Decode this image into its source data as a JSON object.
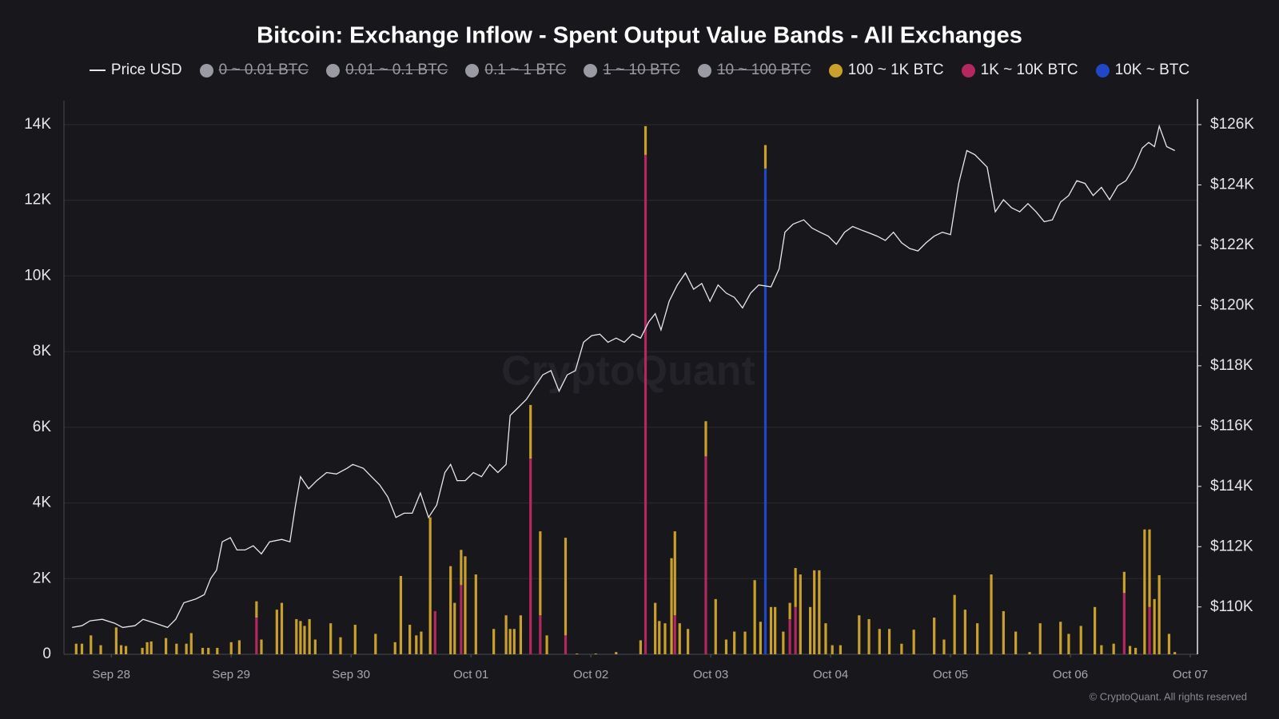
{
  "chart_data": {
    "type": "bar",
    "stacked": true,
    "title": "Bitcoin: Exchange Inflow - Spent Output Value Bands - All Exchanges",
    "x": [
      -0.293,
      -0.245,
      -0.17,
      -0.088,
      0.041,
      0.082,
      0.122,
      0.259,
      0.299,
      0.333,
      0.456,
      0.544,
      0.626,
      0.667,
      0.762,
      0.81,
      0.884,
      1,
      1.068,
      1.211,
      1.252,
      1.381,
      1.422,
      1.544,
      1.578,
      1.612,
      1.653,
      1.701,
      1.83,
      1.912,
      2.034,
      2.204,
      2.367,
      2.415,
      2.49,
      2.544,
      2.585,
      2.66,
      2.701,
      2.83,
      2.864,
      2.918,
      2.952,
      3.041,
      3.19,
      3.293,
      3.327,
      3.361,
      3.415,
      3.497,
      3.578,
      3.633,
      3.789,
      3.884,
      4.041,
      4.211,
      4.415,
      4.456,
      4.537,
      4.571,
      4.619,
      4.673,
      4.701,
      4.741,
      4.81,
      4.959,
      5.041,
      5.129,
      5.197,
      5.286,
      5.367,
      5.415,
      5.456,
      5.503,
      5.537,
      5.605,
      5.66,
      5.707,
      5.748,
      5.83,
      5.864,
      5.905,
      5.959,
      6.014,
      6.082,
      6.238,
      6.32,
      6.408,
      6.49,
      6.592,
      6.694,
      6.864,
      6.946,
      7.034,
      7.122,
      7.224,
      7.34,
      7.442,
      7.544,
      7.66,
      7.748,
      7.918,
      7.986,
      8.088,
      8.204,
      8.259,
      8.361,
      8.449,
      8.497,
      8.544,
      8.619,
      8.66,
      8.701,
      8.741,
      8.823,
      8.871
    ],
    "xlim": [
      -0.395,
      9.06
    ],
    "xticks": [
      {
        "value": 0,
        "label": "Sep 28"
      },
      {
        "value": 1,
        "label": "Sep 29"
      },
      {
        "value": 2,
        "label": "Sep 30"
      },
      {
        "value": 3,
        "label": "Oct 01"
      },
      {
        "value": 4,
        "label": "Oct 02"
      },
      {
        "value": 5,
        "label": "Oct 03"
      },
      {
        "value": 6,
        "label": "Oct 04"
      },
      {
        "value": 7,
        "label": "Oct 05"
      },
      {
        "value": 8,
        "label": "Oct 06"
      },
      {
        "value": 9,
        "label": "Oct 07"
      }
    ],
    "ylim": [
      0,
      14000
    ],
    "yticks": [
      0,
      {
        "value": 2000,
        "label": "2K"
      },
      {
        "value": 4000,
        "label": "4K"
      },
      {
        "value": 6000,
        "label": "6K"
      },
      {
        "value": 8000,
        "label": "8K"
      },
      {
        "value": 10000,
        "label": "10K"
      },
      {
        "value": 12000,
        "label": "12K"
      },
      {
        "value": 14000,
        "label": "14K"
      }
    ],
    "y2lim": [
      108430,
      126000
    ],
    "y2ticks": [
      {
        "value": 110000,
        "label": "$110K"
      },
      {
        "value": 112000,
        "label": "$112K"
      },
      {
        "value": 114000,
        "label": "$114K"
      },
      {
        "value": 116000,
        "label": "$116K"
      },
      {
        "value": 118000,
        "label": "$118K"
      },
      {
        "value": 120000,
        "label": "$120K"
      },
      {
        "value": 122000,
        "label": "$122K"
      },
      {
        "value": 124000,
        "label": "$124K"
      },
      {
        "value": 126000,
        "label": "$126K"
      }
    ],
    "grid": true,
    "series": [
      {
        "name": "Price USD",
        "type": "line",
        "axis": "y2",
        "color": "#e8e8ec",
        "x": [
          -0.327,
          -0.245,
          -0.177,
          -0.075,
          0.027,
          0.095,
          0.197,
          0.265,
          0.367,
          0.469,
          0.537,
          0.605,
          0.707,
          0.776,
          0.83,
          0.878,
          0.925,
          0.993,
          1.048,
          1.116,
          1.184,
          1.252,
          1.32,
          1.422,
          1.49,
          1.537,
          1.578,
          1.646,
          1.714,
          1.796,
          1.878,
          1.966,
          2.014,
          2.102,
          2.17,
          2.238,
          2.306,
          2.374,
          2.442,
          2.51,
          2.578,
          2.646,
          2.714,
          2.782,
          2.83,
          2.884,
          2.952,
          3.02,
          3.088,
          3.156,
          3.224,
          3.293,
          3.327,
          3.395,
          3.463,
          3.531,
          3.599,
          3.667,
          3.735,
          3.803,
          3.871,
          3.939,
          4.007,
          4.075,
          4.143,
          4.211,
          4.279,
          4.347,
          4.415,
          4.483,
          4.537,
          4.585,
          4.653,
          4.721,
          4.789,
          4.857,
          4.925,
          4.993,
          5.061,
          5.129,
          5.197,
          5.265,
          5.333,
          5.401,
          5.503,
          5.571,
          5.619,
          5.687,
          5.776,
          5.844,
          5.912,
          5.98,
          6.048,
          6.116,
          6.184,
          6.252,
          6.32,
          6.388,
          6.456,
          6.524,
          6.592,
          6.66,
          6.728,
          6.796,
          6.864,
          6.932,
          7,
          7.068,
          7.136,
          7.204,
          7.306,
          7.374,
          7.442,
          7.51,
          7.578,
          7.646,
          7.714,
          7.782,
          7.85,
          7.918,
          7.986,
          8.054,
          8.122,
          8.19,
          8.259,
          8.327,
          8.395,
          8.463,
          8.531,
          8.599,
          8.653,
          8.701,
          8.741,
          8.803,
          8.871
        ],
        "values": [
          109320,
          109380,
          109540,
          109590,
          109460,
          109320,
          109380,
          109590,
          109460,
          109320,
          109590,
          110140,
          110270,
          110410,
          110950,
          111220,
          112160,
          112300,
          111890,
          111890,
          112030,
          111760,
          112160,
          112240,
          112160,
          113380,
          114320,
          113920,
          114190,
          114460,
          114410,
          114600,
          114730,
          114600,
          114320,
          114050,
          113650,
          112970,
          113110,
          113110,
          113780,
          112970,
          113380,
          114460,
          114730,
          114190,
          114190,
          114460,
          114320,
          114730,
          114460,
          114730,
          116350,
          116620,
          116890,
          117300,
          117700,
          117840,
          117160,
          117700,
          117840,
          118780,
          119000,
          119050,
          118780,
          118920,
          118780,
          119050,
          118920,
          119460,
          119730,
          119190,
          120140,
          120680,
          121080,
          120540,
          120730,
          120140,
          120680,
          120410,
          120270,
          119920,
          120410,
          120680,
          120620,
          121220,
          122430,
          122700,
          122840,
          122570,
          122430,
          122300,
          122030,
          122430,
          122620,
          122510,
          122410,
          122300,
          122160,
          122430,
          122080,
          121890,
          121810,
          122080,
          122300,
          122430,
          122350,
          124050,
          125140,
          125000,
          124590,
          123110,
          123510,
          123240,
          123110,
          123380,
          123110,
          122780,
          122840,
          123430,
          123650,
          124140,
          124050,
          123650,
          123920,
          123510,
          123970,
          124140,
          124590,
          125220,
          125410,
          125270,
          125950,
          125270,
          125140
        ]
      },
      {
        "name": "100 ~ 1K BTC",
        "color": "#c9a02b",
        "values": [
          280,
          280,
          500,
          240,
          710,
          240,
          220,
          170,
          320,
          340,
          430,
          280,
          280,
          560,
          170,
          170,
          170,
          320,
          370,
          430,
          390,
          1180,
          1360,
          930,
          880,
          750,
          930,
          390,
          820,
          450,
          780,
          540,
          320,
          2070,
          780,
          500,
          600,
          3620,
          0,
          2330,
          1360,
          930,
          2590,
          2110,
          670,
          1030,
          670,
          670,
          1030,
          1420,
          2220,
          500,
          2580,
          20,
          20,
          60,
          370,
          760,
          1360,
          880,
          820,
          2540,
          2220,
          820,
          670,
          930,
          1460,
          390,
          600,
          600,
          1960,
          860,
          620,
          1250,
          1250,
          600,
          430,
          1030,
          2110,
          1250,
          2220,
          2220,
          820,
          240,
          240,
          1030,
          930,
          670,
          670,
          280,
          650,
          970,
          390,
          1570,
          1180,
          820,
          2110,
          1140,
          600,
          60,
          820,
          860,
          540,
          750,
          1250,
          240,
          280,
          560,
          220,
          170,
          3300,
          2050,
          1460,
          2090,
          540,
          60
        ]
      },
      {
        "name": "1K ~ 10K BTC",
        "color": "#b5275f",
        "values": [
          0,
          0,
          0,
          0,
          0,
          0,
          0,
          0,
          0,
          0,
          0,
          0,
          0,
          0,
          0,
          0,
          0,
          0,
          0,
          970,
          0,
          0,
          0,
          0,
          0,
          0,
          0,
          0,
          0,
          0,
          0,
          0,
          0,
          0,
          0,
          0,
          0,
          0,
          1140,
          0,
          0,
          1830,
          0,
          0,
          0,
          0,
          0,
          0,
          0,
          5170,
          1030,
          0,
          500,
          0,
          0,
          0,
          0,
          13200,
          0,
          0,
          0,
          0,
          1030,
          0,
          0,
          5230,
          0,
          0,
          0,
          0,
          0,
          0,
          0,
          0,
          0,
          0,
          930,
          1250,
          0,
          0,
          0,
          0,
          0,
          0,
          0,
          0,
          0,
          0,
          0,
          0,
          0,
          0,
          0,
          0,
          0,
          0,
          0,
          0,
          0,
          0,
          0,
          0,
          0,
          0,
          0,
          0,
          0,
          1620,
          0,
          0,
          0,
          1250,
          0,
          0,
          0,
          0
        ]
      },
      {
        "name": "10K ~ BTC",
        "color": "#2047c8",
        "values": [
          0,
          0,
          0,
          0,
          0,
          0,
          0,
          0,
          0,
          0,
          0,
          0,
          0,
          0,
          0,
          0,
          0,
          0,
          0,
          0,
          0,
          0,
          0,
          0,
          0,
          0,
          0,
          0,
          0,
          0,
          0,
          0,
          0,
          0,
          0,
          0,
          0,
          0,
          0,
          0,
          0,
          0,
          0,
          0,
          0,
          0,
          0,
          0,
          0,
          0,
          0,
          0,
          0,
          0,
          0,
          0,
          0,
          0,
          0,
          0,
          0,
          0,
          0,
          0,
          0,
          0,
          0,
          0,
          0,
          0,
          0,
          0,
          12840,
          0,
          0,
          0,
          0,
          0,
          0,
          0,
          0,
          0,
          0,
          0,
          0,
          0,
          0,
          0,
          0,
          0,
          0,
          0,
          0,
          0,
          0,
          0,
          0,
          0,
          0,
          0,
          0,
          0,
          0,
          0,
          0,
          0,
          0,
          0,
          0,
          0,
          0,
          0,
          0,
          0,
          0,
          0
        ]
      }
    ],
    "legend_disabled": [
      "0 ~ 0.01 BTC",
      "0.01 ~ 0.1 BTC",
      "0.1 ~ 1 BTC",
      "1 ~ 10 BTC",
      "10 ~ 100 BTC"
    ],
    "legend_disabled_color": "#9a9aa3",
    "watermark": "CryptoQuant",
    "copyright": "© CryptoQuant. All rights reserved"
  }
}
